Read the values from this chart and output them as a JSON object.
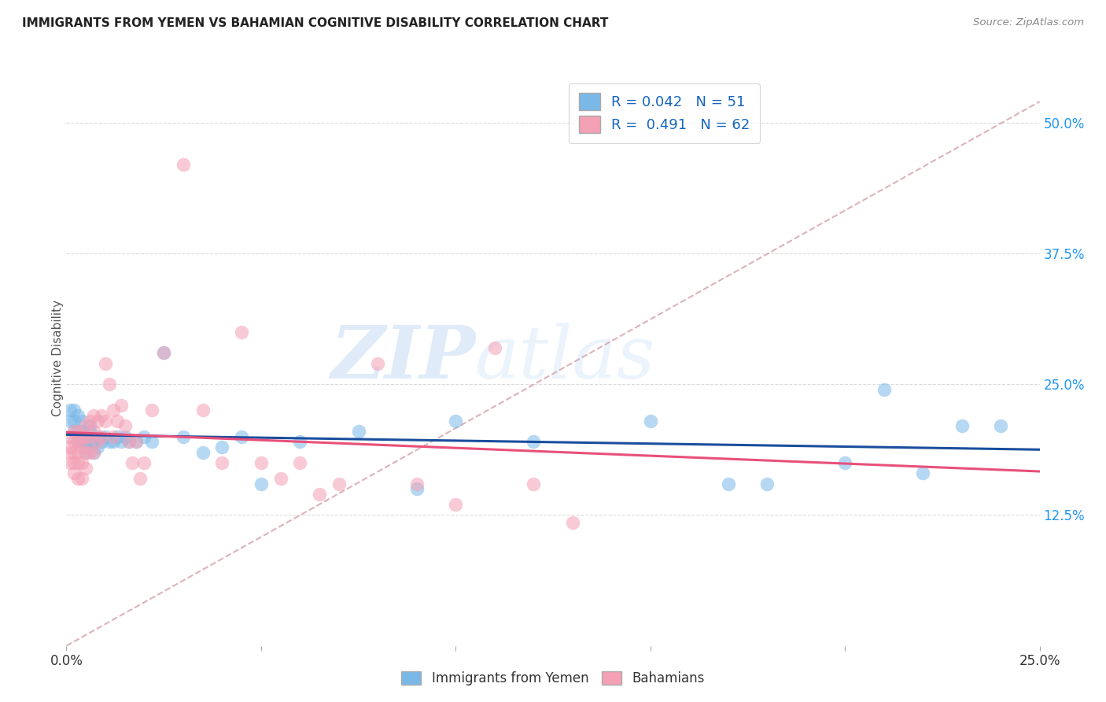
{
  "title": "IMMIGRANTS FROM YEMEN VS BAHAMIAN COGNITIVE DISABILITY CORRELATION CHART",
  "source": "Source: ZipAtlas.com",
  "ylabel": "Cognitive Disability",
  "watermark": "ZIPatlas",
  "right_yticks": [
    "50.0%",
    "37.5%",
    "25.0%",
    "12.5%"
  ],
  "right_ytick_vals": [
    0.5,
    0.375,
    0.25,
    0.125
  ],
  "xlim": [
    0.0,
    0.25
  ],
  "ylim": [
    0.0,
    0.55
  ],
  "color_blue": "#7ab8e8",
  "color_pink": "#f4a0b5",
  "series1_name": "Immigrants from Yemen",
  "series2_name": "Bahamians",
  "blue_line_color": "#1a4e9e",
  "pink_line_color": "#e8507a",
  "dash_line_color": "#d4a0a8",
  "background_color": "#ffffff",
  "grid_color": "#cccccc",
  "series1_x": [
    0.001,
    0.001,
    0.002,
    0.002,
    0.002,
    0.003,
    0.003,
    0.003,
    0.004,
    0.004,
    0.004,
    0.005,
    0.005,
    0.005,
    0.006,
    0.006,
    0.006,
    0.007,
    0.007,
    0.008,
    0.008,
    0.009,
    0.01,
    0.011,
    0.012,
    0.013,
    0.014,
    0.015,
    0.016,
    0.018,
    0.02,
    0.022,
    0.025,
    0.03,
    0.035,
    0.04,
    0.045,
    0.05,
    0.06,
    0.075,
    0.09,
    0.1,
    0.12,
    0.15,
    0.17,
    0.18,
    0.2,
    0.21,
    0.22,
    0.23,
    0.24
  ],
  "series1_y": [
    0.215,
    0.225,
    0.225,
    0.215,
    0.205,
    0.22,
    0.205,
    0.195,
    0.215,
    0.205,
    0.195,
    0.2,
    0.195,
    0.185,
    0.21,
    0.195,
    0.205,
    0.195,
    0.185,
    0.2,
    0.19,
    0.195,
    0.2,
    0.195,
    0.195,
    0.2,
    0.195,
    0.2,
    0.195,
    0.195,
    0.2,
    0.195,
    0.28,
    0.2,
    0.185,
    0.19,
    0.2,
    0.155,
    0.195,
    0.205,
    0.15,
    0.215,
    0.195,
    0.215,
    0.155,
    0.155,
    0.175,
    0.245,
    0.165,
    0.21,
    0.21
  ],
  "series2_x": [
    0.001,
    0.001,
    0.001,
    0.001,
    0.002,
    0.002,
    0.002,
    0.002,
    0.002,
    0.003,
    0.003,
    0.003,
    0.003,
    0.003,
    0.004,
    0.004,
    0.004,
    0.004,
    0.005,
    0.005,
    0.005,
    0.005,
    0.006,
    0.006,
    0.006,
    0.007,
    0.007,
    0.007,
    0.008,
    0.008,
    0.009,
    0.009,
    0.01,
    0.01,
    0.011,
    0.012,
    0.012,
    0.013,
    0.014,
    0.015,
    0.016,
    0.017,
    0.018,
    0.019,
    0.02,
    0.022,
    0.025,
    0.03,
    0.035,
    0.04,
    0.045,
    0.05,
    0.055,
    0.06,
    0.065,
    0.07,
    0.08,
    0.09,
    0.1,
    0.11,
    0.12,
    0.13
  ],
  "series2_y": [
    0.2,
    0.19,
    0.185,
    0.175,
    0.205,
    0.195,
    0.185,
    0.175,
    0.165,
    0.205,
    0.195,
    0.185,
    0.175,
    0.16,
    0.2,
    0.19,
    0.175,
    0.16,
    0.21,
    0.2,
    0.185,
    0.17,
    0.215,
    0.2,
    0.185,
    0.22,
    0.205,
    0.185,
    0.215,
    0.195,
    0.22,
    0.2,
    0.27,
    0.215,
    0.25,
    0.225,
    0.2,
    0.215,
    0.23,
    0.21,
    0.195,
    0.175,
    0.195,
    0.16,
    0.175,
    0.225,
    0.28,
    0.46,
    0.225,
    0.175,
    0.3,
    0.175,
    0.16,
    0.175,
    0.145,
    0.155,
    0.27,
    0.155,
    0.135,
    0.285,
    0.155,
    0.118
  ]
}
